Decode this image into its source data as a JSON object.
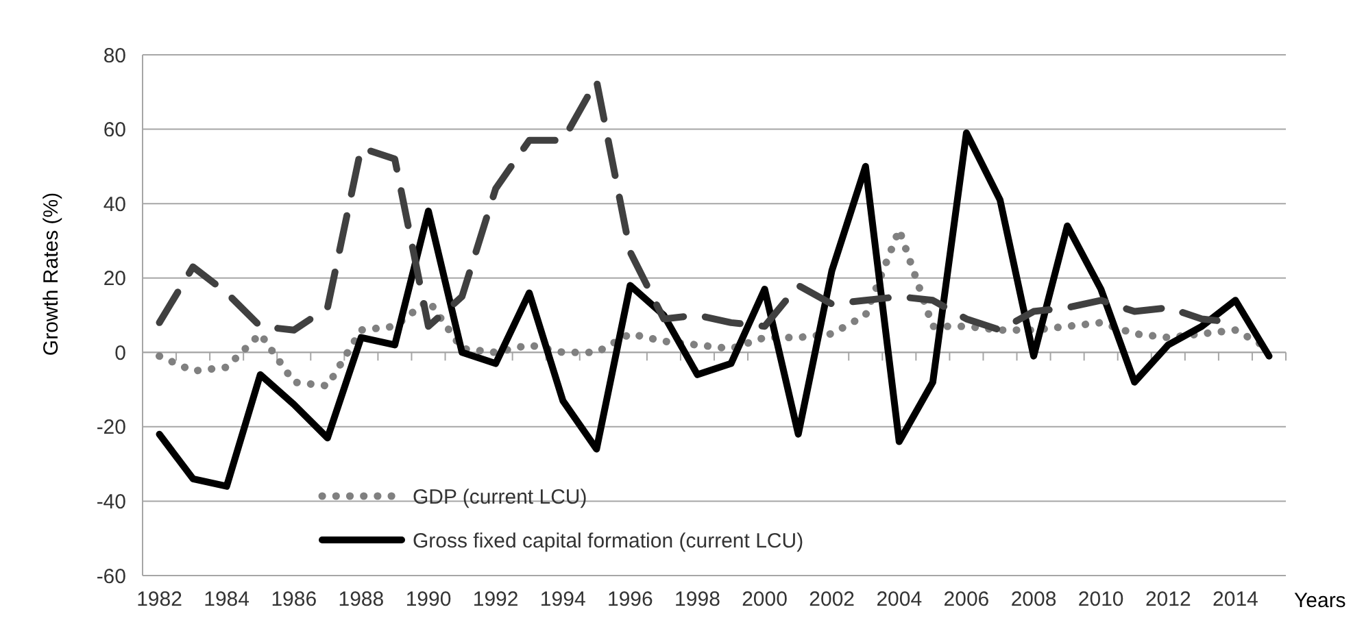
{
  "chart_data": {
    "type": "line",
    "xlabel": "Years",
    "ylabel": "Growth Rates (%)",
    "categories": [
      "1982",
      null,
      "1984",
      null,
      "1986",
      null,
      "1988",
      null,
      "1990",
      null,
      "1992",
      null,
      "1994",
      null,
      "1996",
      null,
      "1998",
      null,
      "2000",
      null,
      "2002",
      null,
      "2004",
      null,
      "2006",
      null,
      "2008",
      null,
      "2010",
      null,
      "2012",
      null,
      "2014",
      null
    ],
    "series": [
      {
        "name": "GDP (current LCU)",
        "color": "#808080",
        "line_style": "dotted",
        "values": [
          -1,
          -5,
          -4,
          5,
          -8,
          -9,
          6,
          7,
          14,
          1,
          0,
          2,
          0,
          0,
          5,
          3,
          2,
          1,
          4,
          4,
          5,
          10,
          33,
          7,
          7,
          6,
          6,
          7,
          8,
          5,
          4,
          5,
          6,
          1
        ]
      },
      {
        "name": "Gross fixed capital formation (current LCU)",
        "color": "#000000",
        "line_style": "solid",
        "values": [
          -22,
          -34,
          -36,
          -6,
          -14,
          -23,
          4,
          2,
          38,
          0,
          -3,
          16,
          -13,
          -26,
          18,
          10,
          -6,
          -3,
          17,
          -22,
          22,
          50,
          -24,
          -8,
          59,
          41,
          -1,
          34,
          17,
          -8,
          2,
          7,
          14,
          -1
        ]
      },
      {
        "color": "#404040",
        "line_style": "dashed",
        "values": [
          8,
          23,
          16,
          7,
          6,
          12,
          55,
          52,
          7,
          15,
          44,
          57,
          57,
          73,
          27,
          9,
          10,
          8,
          7,
          18,
          13,
          14,
          15,
          14,
          9,
          6,
          11,
          12,
          14,
          11,
          12,
          9,
          8,
          null
        ]
      }
    ],
    "ylim": [
      -60,
      80
    ],
    "yticks": [
      -60,
      -40,
      -20,
      0,
      20,
      40,
      60,
      80
    ],
    "grid": "y",
    "legend": "bottom"
  }
}
